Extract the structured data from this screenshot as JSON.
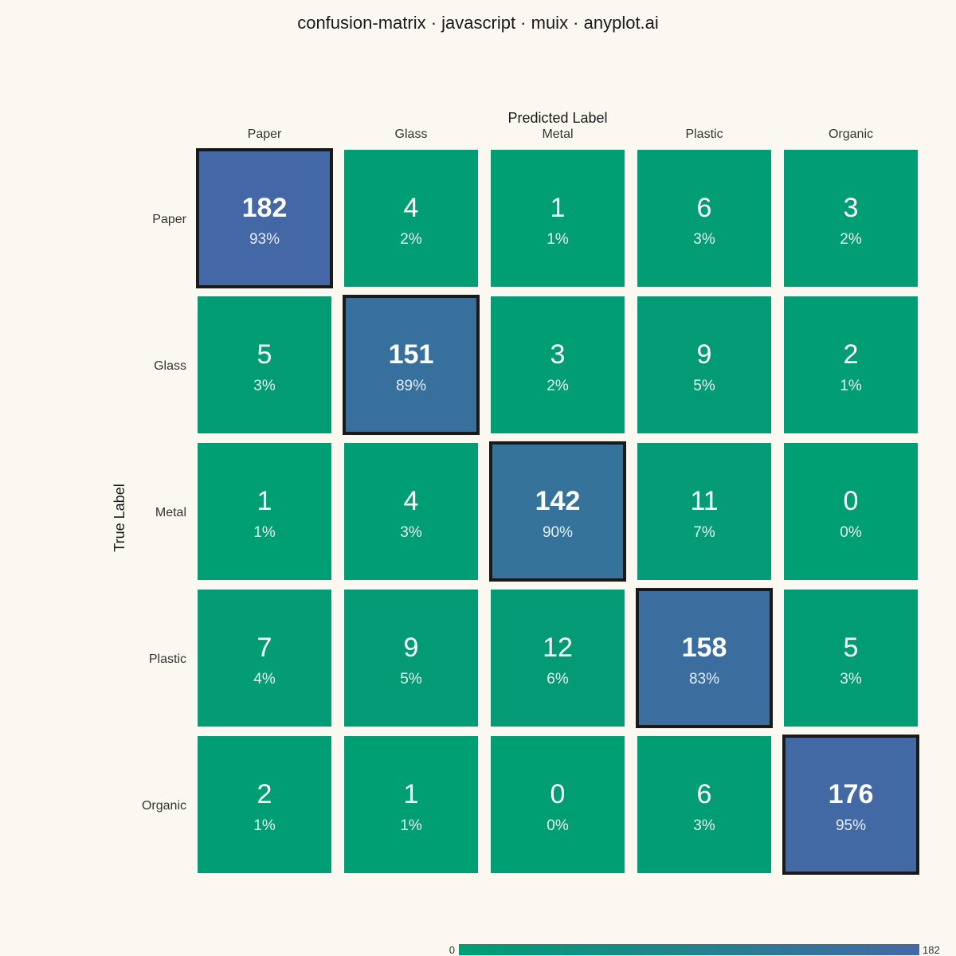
{
  "chart_data": {
    "type": "heatmap",
    "title": "confusion-matrix · javascript · muix · anyplot.ai",
    "xlabel": "Predicted Label",
    "ylabel": "True Label",
    "x_categories": [
      "Paper",
      "Glass",
      "Metal",
      "Plastic",
      "Organic"
    ],
    "y_categories": [
      "Paper",
      "Glass",
      "Metal",
      "Plastic",
      "Organic"
    ],
    "values": [
      [
        182,
        4,
        1,
        6,
        3
      ],
      [
        5,
        151,
        3,
        9,
        2
      ],
      [
        1,
        4,
        142,
        11,
        0
      ],
      [
        7,
        9,
        12,
        158,
        5
      ],
      [
        2,
        1,
        0,
        6,
        176
      ]
    ],
    "percent_labels": [
      [
        "93%",
        "2%",
        "1%",
        "3%",
        "2%"
      ],
      [
        "3%",
        "89%",
        "2%",
        "5%",
        "1%"
      ],
      [
        "1%",
        "3%",
        "90%",
        "7%",
        "0%"
      ],
      [
        "4%",
        "5%",
        "6%",
        "83%",
        "3%"
      ],
      [
        "1%",
        "1%",
        "0%",
        "3%",
        "95%"
      ]
    ],
    "colorbar": {
      "min": 0,
      "max": 182,
      "min_label": "0",
      "max_label": "182"
    },
    "colors": {
      "low": "#009E73",
      "high": "#4467A6",
      "text": "#FFFFFF",
      "diagonal_border": "#1A1A1A"
    },
    "legend_placement": "bottom-center",
    "grid": false
  }
}
